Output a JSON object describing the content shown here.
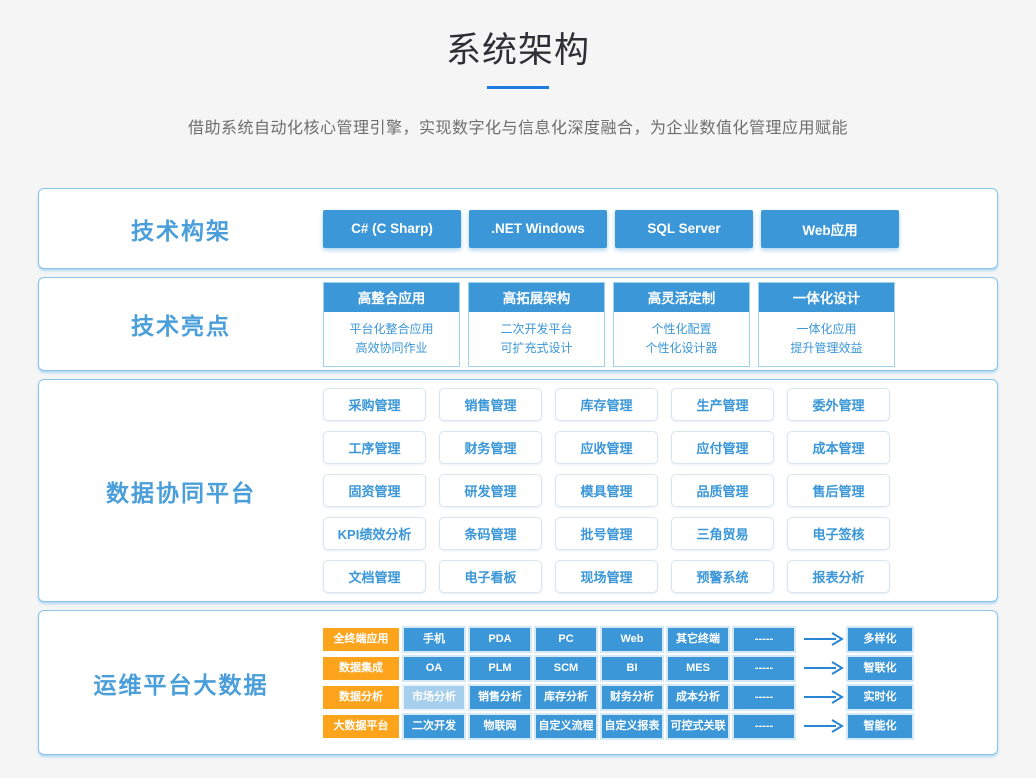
{
  "page": {
    "title": "系统架构",
    "subtitle": "借助系统自动化核心管理引擎，实现数字化与信息化深度融合，为企业数值化管理应用赋能"
  },
  "colors": {
    "accent_blue": "#3b97d8",
    "accent_orange": "#fba41c",
    "underline_blue": "#1b7ce2",
    "label_blue": "#4a9ed9"
  },
  "sections": {
    "tech_stack": {
      "label": "技术构架",
      "items": [
        "C# (C Sharp)",
        ".NET Windows",
        "SQL Server",
        "Web应用"
      ]
    },
    "highlights": {
      "label": "技术亮点",
      "cards": [
        {
          "title": "高整合应用",
          "lines": [
            "平台化整合应用",
            "高效协同作业"
          ]
        },
        {
          "title": "高拓展架构",
          "lines": [
            "二次开发平台",
            "可扩充式设计"
          ]
        },
        {
          "title": "高灵活定制",
          "lines": [
            "个性化配置",
            "个性化设计器"
          ]
        },
        {
          "title": "一体化设计",
          "lines": [
            "一体化应用",
            "提升管理效益"
          ]
        }
      ]
    },
    "data_platform": {
      "label": "数据协同平台",
      "modules": [
        "采购管理",
        "销售管理",
        "库存管理",
        "生产管理",
        "委外管理",
        "工序管理",
        "财务管理",
        "应收管理",
        "应付管理",
        "成本管理",
        "固资管理",
        "研发管理",
        "模具管理",
        "品质管理",
        "售后管理",
        "KPI绩效分析",
        "条码管理",
        "批号管理",
        "三角贸易",
        "电子签核",
        "文档管理",
        "电子看板",
        "现场管理",
        "预警系统",
        "报表分析"
      ]
    },
    "bigdata": {
      "label": "运维平台大数据",
      "faded_items": [
        "市场分析"
      ],
      "rows": [
        {
          "tag": "全终端应用",
          "items": [
            "手机",
            "PDA",
            "PC",
            "Web",
            "其它终端",
            "-----"
          ],
          "result": "多样化"
        },
        {
          "tag": "数据集成",
          "items": [
            "OA",
            "PLM",
            "SCM",
            "BI",
            "MES",
            "-----"
          ],
          "result": "智联化"
        },
        {
          "tag": "数据分析",
          "items": [
            "市场分析",
            "销售分析",
            "库存分析",
            "财务分析",
            "成本分析",
            "-----"
          ],
          "result": "实时化"
        },
        {
          "tag": "大数据平台",
          "items": [
            "二次开发",
            "物联网",
            "自定义流程",
            "自定义报表",
            "可控式关联",
            "-----"
          ],
          "result": "智能化"
        }
      ]
    }
  }
}
